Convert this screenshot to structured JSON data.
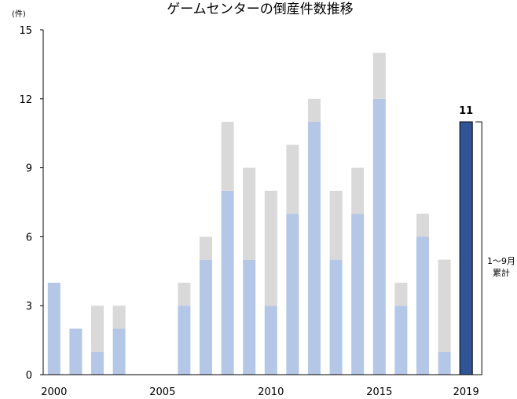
{
  "chart_data": {
    "type": "bar",
    "stacked": true,
    "title": "ゲームセンターの倒産件数推移",
    "y_unit": "(件)",
    "ylim": [
      0,
      15
    ],
    "yticks": [
      0,
      3,
      6,
      9,
      12,
      15
    ],
    "x_tick_labels": [
      "2000",
      "2005",
      "2010",
      "2015",
      "2019"
    ],
    "categories": [
      "2000",
      "2001",
      "2002",
      "2003",
      "2004",
      "2005",
      "2006",
      "2007",
      "2008",
      "2009",
      "2010",
      "2011",
      "2012",
      "2013",
      "2014",
      "2015",
      "2016",
      "2017",
      "2018",
      "2019"
    ],
    "series": [
      {
        "values": [
          4,
          2,
          1,
          2,
          0,
          0,
          3,
          5,
          8,
          5,
          3,
          7,
          11,
          5,
          7,
          12,
          3,
          6,
          1,
          11
        ],
        "color": "#b4c7e7"
      },
      {
        "values": [
          0,
          0,
          2,
          1,
          0,
          0,
          1,
          1,
          3,
          4,
          5,
          3,
          1,
          3,
          2,
          2,
          1,
          1,
          4,
          0
        ],
        "color": "#d9d9d9"
      }
    ],
    "highlight": {
      "category": "2019",
      "value": 11,
      "label": "11",
      "color": "#2f5597"
    },
    "annotation": {
      "lines": [
        "1〜9月",
        "累計"
      ]
    },
    "grid": false
  }
}
